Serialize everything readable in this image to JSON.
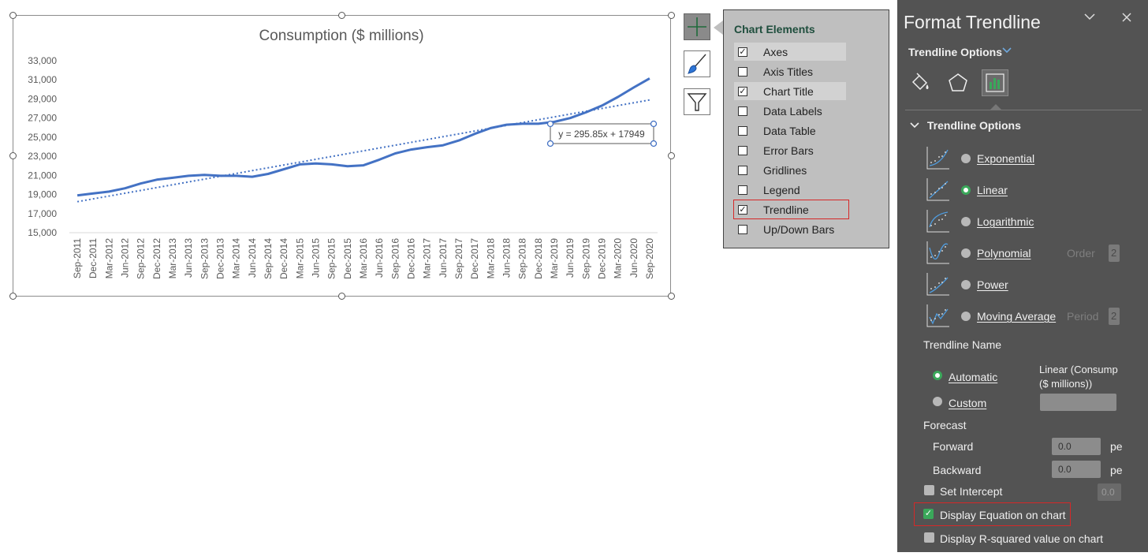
{
  "chart_data": {
    "type": "line",
    "title": "Consumption  ($ millions)",
    "categories": [
      "Sep-2011",
      "Dec-2011",
      "Mar-2012",
      "Jun-2012",
      "Sep-2012",
      "Dec-2012",
      "Mar-2013",
      "Jun-2013",
      "Sep-2013",
      "Dec-2013",
      "Mar-2014",
      "Jun-2014",
      "Sep-2014",
      "Dec-2014",
      "Mar-2015",
      "Jun-2015",
      "Sep-2015",
      "Dec-2015",
      "Mar-2016",
      "Jun-2016",
      "Sep-2016",
      "Dec-2016",
      "Mar-2017",
      "Jun-2017",
      "Sep-2017",
      "Dec-2017",
      "Mar-2018",
      "Jun-2018",
      "Sep-2018",
      "Dec-2018",
      "Mar-2019",
      "Jun-2019",
      "Sep-2019",
      "Dec-2019",
      "Mar-2020",
      "Jun-2020",
      "Sep-2020"
    ],
    "series": [
      {
        "values": [
          18900,
          19100,
          19300,
          19650,
          20150,
          20550,
          20750,
          20950,
          21050,
          20950,
          20950,
          20850,
          21150,
          21650,
          22150,
          22250,
          22150,
          21950,
          22050,
          22650,
          23300,
          23700,
          23950,
          24150,
          24650,
          25350,
          25950,
          26300,
          26400,
          26400,
          26600,
          27000,
          27600,
          28300,
          29200,
          30200,
          31150
        ]
      }
    ],
    "trendline": {
      "type": "linear",
      "slope": 295.85,
      "intercept": 17949,
      "equation_label": "y = 295.85x + 17949",
      "style": "dotted"
    },
    "ylim": [
      15000,
      33000
    ],
    "yticks": [
      "15,000",
      "17,000",
      "19,000",
      "21,000",
      "23,000",
      "25,000",
      "27,000",
      "29,000",
      "31,000",
      "33,000"
    ],
    "grid": false,
    "legend": "none",
    "line_color": "#4472c4"
  },
  "chart_elements": {
    "title": "Chart Elements",
    "items": [
      {
        "label": "Axes",
        "checked": true
      },
      {
        "label": "Axis Titles",
        "checked": false
      },
      {
        "label": "Chart Title",
        "checked": true
      },
      {
        "label": "Data Labels",
        "checked": false
      },
      {
        "label": "Data Table",
        "checked": false
      },
      {
        "label": "Error Bars",
        "checked": false
      },
      {
        "label": "Gridlines",
        "checked": false
      },
      {
        "label": "Legend",
        "checked": false
      },
      {
        "label": "Trendline",
        "checked": true
      },
      {
        "label": "Up/Down Bars",
        "checked": false
      }
    ]
  },
  "pane": {
    "title": "Format Trendline",
    "subtitle": "Trendline Options",
    "section": "Trendline Options",
    "options": [
      {
        "label": "Exponential",
        "selected": false
      },
      {
        "label": "Linear",
        "selected": true
      },
      {
        "label": "Logarithmic",
        "selected": false
      },
      {
        "label": "Polynomial",
        "selected": false,
        "extra_label": "Order",
        "extra_value": "2"
      },
      {
        "label": "Power",
        "selected": false
      },
      {
        "label": "Moving Average",
        "selected": false,
        "extra_label": "Period",
        "extra_value": "2"
      }
    ],
    "trendline_name_label": "Trendline Name",
    "automatic_label": "Automatic",
    "automatic_value_line1": "Linear (Consump",
    "automatic_value_line2": "($ millions))",
    "custom_label": "Custom",
    "forecast_label": "Forecast",
    "forward_label": "Forward",
    "forward_value": "0.0",
    "backward_label": "Backward",
    "backward_value": "0.0",
    "period_suffix": "pe",
    "set_intercept_label": "Set Intercept",
    "set_intercept_value": "0.0",
    "display_equation_label": "Display Equation on chart",
    "display_rsq_label": "Display R-squared value on chart"
  },
  "colors": {
    "accent_green": "#3aa85a",
    "highlight_red": "#d62828"
  }
}
